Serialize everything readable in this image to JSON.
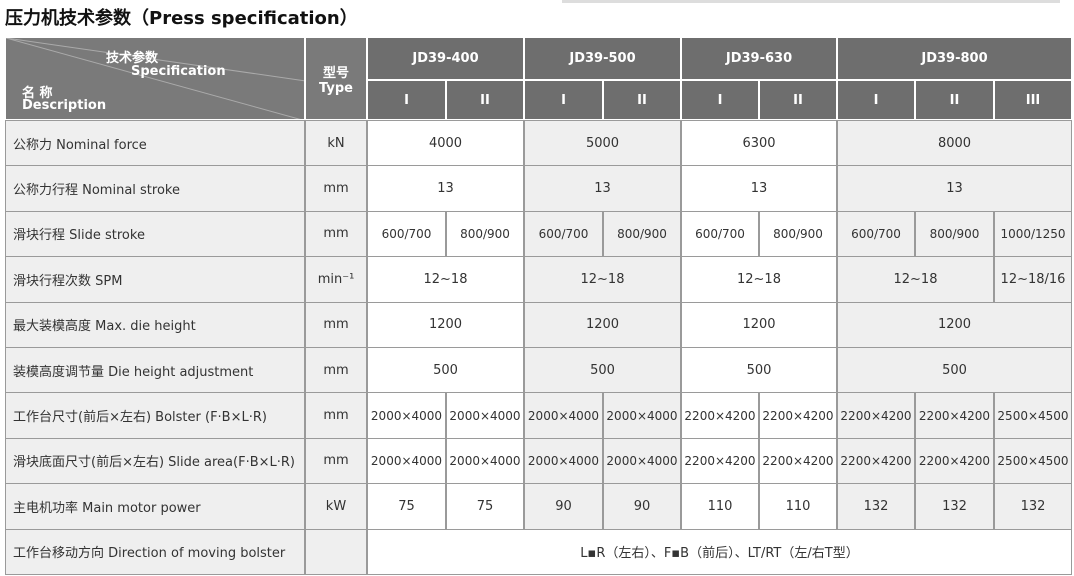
{
  "title": "压力机技术参数（Press specification）",
  "table": {
    "header": {
      "spec": "技术参数",
      "spec_en": "Specification",
      "name": "名 称",
      "name_en": "Description",
      "type": "型号",
      "type_en": "Type",
      "models": [
        "JD39-400",
        "JD39-500",
        "JD39-630",
        "JD39-800"
      ],
      "variants": [
        "I",
        "II",
        "I",
        "II",
        "I",
        "II",
        "I",
        "II",
        "III"
      ]
    },
    "rows": [
      {
        "label": "公称力 Nominal force",
        "unit": "kN",
        "cells": [
          "4000",
          "5000",
          "6300",
          "8000"
        ]
      },
      {
        "label": "公称力行程  Nominal stroke",
        "unit": "mm",
        "cells": [
          "13",
          "13",
          "13",
          "13"
        ]
      },
      {
        "label": "滑块行程  Slide stroke",
        "unit": "mm",
        "cells": [
          "600/700",
          "800/900",
          "600/700",
          "800/900",
          "600/700",
          "800/900",
          "600/700",
          "800/900",
          "1000/1250"
        ]
      },
      {
        "label": "滑块行程次数  SPM",
        "unit": "min⁻¹",
        "cells": [
          "12~18",
          "12~18",
          "12~18",
          "12~18",
          "12~18/16"
        ]
      },
      {
        "label": "最大装模高度  Max. die height",
        "unit": "mm",
        "cells": [
          "1200",
          "1200",
          "1200",
          "1200"
        ]
      },
      {
        "label": "装模高度调节量  Die height adjustment",
        "unit": "mm",
        "cells": [
          "500",
          "500",
          "500",
          "500"
        ]
      },
      {
        "label": "工作台尺寸(前后×左右)    Bolster (F·B×L·R)",
        "unit": "mm",
        "cells": [
          "2000×4000",
          "2000×4000",
          "2000×4000",
          "2000×4000",
          "2200×4200",
          "2200×4200",
          "2200×4200",
          "2200×4200",
          "2500×4500"
        ]
      },
      {
        "label": "滑块底面尺寸(前后×左右)  Slide area(F·B×L·R)",
        "unit": "mm",
        "cells": [
          "2000×4000",
          "2000×4000",
          "2000×4000",
          "2000×4000",
          "2200×4200",
          "2200×4200",
          "2200×4200",
          "2200×4200",
          "2500×4500"
        ]
      },
      {
        "label": "主电机功率  Main motor power",
        "unit": "kW",
        "cells": [
          "75",
          "75",
          "90",
          "90",
          "110",
          "110",
          "132",
          "132",
          "132"
        ]
      },
      {
        "label": "工作台移动方向  Direction of moving bolster",
        "unit": "",
        "cells": [
          "L▪R（左右）、F▪B（前后）、LT/RT（左/右T型）"
        ]
      }
    ]
  }
}
